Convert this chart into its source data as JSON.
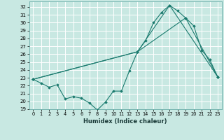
{
  "xlabel": "Humidex (Indice chaleur)",
  "ylabel": "",
  "background_color": "#c8e8e2",
  "grid_color": "#ffffff",
  "line_color": "#1a7a6e",
  "xlim": [
    -0.5,
    23.5
  ],
  "ylim": [
    19,
    32.7
  ],
  "yticks": [
    19,
    20,
    21,
    22,
    23,
    24,
    25,
    26,
    27,
    28,
    29,
    30,
    31,
    32
  ],
  "xticks": [
    0,
    1,
    2,
    3,
    4,
    5,
    6,
    7,
    8,
    9,
    10,
    11,
    12,
    13,
    14,
    15,
    16,
    17,
    18,
    19,
    20,
    21,
    22,
    23
  ],
  "series0": {
    "x": [
      0,
      1,
      2,
      3,
      4,
      5,
      6,
      7,
      8,
      9,
      10,
      11,
      12,
      13,
      14,
      15,
      16,
      17,
      18,
      19,
      20,
      21,
      22,
      23
    ],
    "y": [
      22.8,
      22.3,
      21.8,
      22.1,
      20.3,
      20.6,
      20.4,
      19.8,
      18.9,
      19.9,
      21.3,
      21.3,
      23.9,
      26.3,
      27.7,
      30.0,
      31.3,
      32.2,
      31.5,
      30.6,
      29.6,
      26.5,
      25.3,
      23.1
    ]
  },
  "series1": {
    "x": [
      0,
      13,
      17,
      23
    ],
    "y": [
      22.8,
      26.3,
      32.2,
      23.1
    ]
  },
  "series2": {
    "x": [
      0,
      13,
      19,
      23
    ],
    "y": [
      22.8,
      26.3,
      30.6,
      23.1
    ]
  }
}
